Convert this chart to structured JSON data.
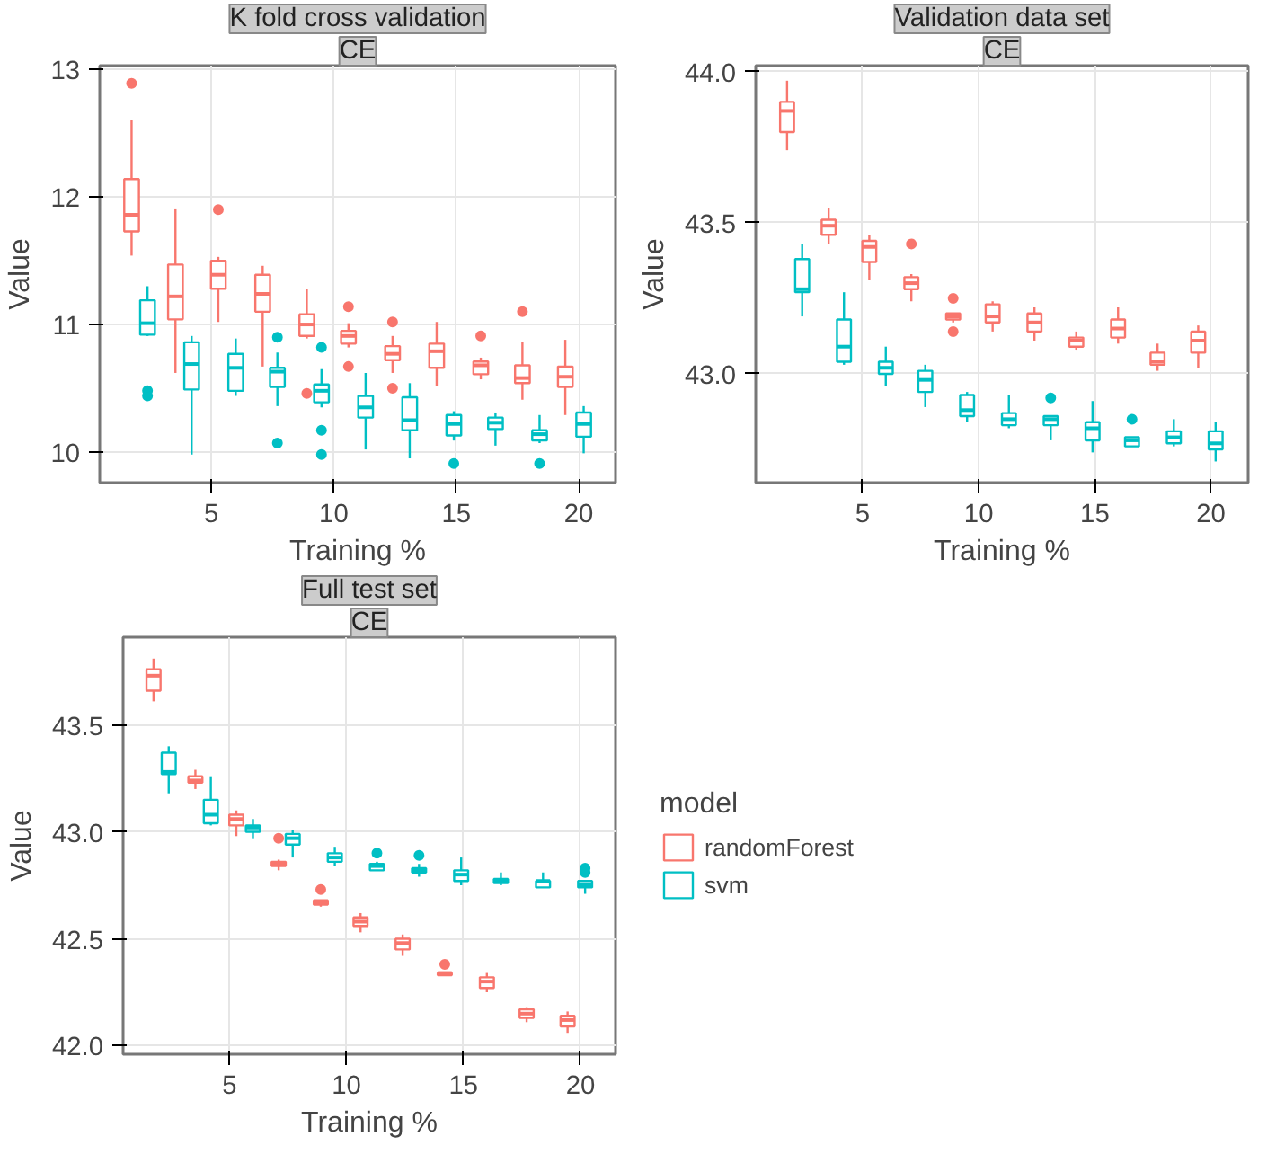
{
  "chart_data": [
    {
      "type": "box",
      "title": "K fold cross validation",
      "subtitle": "CE",
      "xlabel": "Training %",
      "ylabel": "Value",
      "xlim": [
        0.45,
        21.5
      ],
      "xticks": [
        5,
        10,
        15,
        20
      ],
      "ylim": [
        9.76,
        13.03
      ],
      "yticks": [
        10,
        11,
        12,
        13
      ],
      "grid": true,
      "series": [
        {
          "color": "#f8766d",
          "x": [
            1.75,
            3.54,
            5.29,
            7.1,
            8.9,
            10.6,
            12.4,
            14.2,
            16.0,
            17.7,
            19.45
          ],
          "boxes": [
            {
              "low": 11.54,
              "q1": 11.73,
              "median": 11.86,
              "q3": 12.14,
              "high": 12.6,
              "outliers": [
                12.89
              ]
            },
            {
              "low": 10.62,
              "q1": 11.04,
              "median": 11.22,
              "q3": 11.47,
              "high": 11.91
            },
            {
              "low": 11.02,
              "q1": 11.28,
              "median": 11.39,
              "q3": 11.5,
              "high": 11.53,
              "outliers": [
                11.9
              ]
            },
            {
              "low": 10.67,
              "q1": 11.1,
              "median": 11.24,
              "q3": 11.39,
              "high": 11.46
            },
            {
              "low": 10.89,
              "q1": 10.91,
              "median": 11.0,
              "q3": 11.08,
              "high": 11.28,
              "outliers": [
                10.46
              ]
            },
            {
              "low": 10.82,
              "q1": 10.85,
              "median": 10.91,
              "q3": 10.95,
              "high": 11.01,
              "outliers": [
                11.14,
                10.67
              ]
            },
            {
              "low": 10.62,
              "q1": 10.72,
              "median": 10.77,
              "q3": 10.83,
              "high": 10.91,
              "outliers": [
                11.02,
                10.5
              ]
            },
            {
              "low": 10.52,
              "q1": 10.66,
              "median": 10.79,
              "q3": 10.85,
              "high": 11.02
            },
            {
              "low": 10.57,
              "q1": 10.61,
              "median": 10.68,
              "q3": 10.71,
              "high": 10.74,
              "outliers": [
                10.91
              ]
            },
            {
              "low": 10.41,
              "q1": 10.54,
              "median": 10.58,
              "q3": 10.68,
              "high": 10.86,
              "outliers": [
                11.1
              ]
            },
            {
              "low": 10.29,
              "q1": 10.51,
              "median": 10.59,
              "q3": 10.67,
              "high": 10.88
            }
          ]
        },
        {
          "color": "#00bfc4",
          "x": [
            2.4,
            4.2,
            6.0,
            7.7,
            9.5,
            11.3,
            13.1,
            14.9,
            16.6,
            18.4,
            20.2
          ],
          "boxes": [
            {
              "low": 10.91,
              "q1": 10.92,
              "median": 11.01,
              "q3": 11.19,
              "high": 11.3,
              "outliers": [
                10.48,
                10.44
              ]
            },
            {
              "low": 9.98,
              "q1": 10.49,
              "median": 10.69,
              "q3": 10.86,
              "high": 10.91
            },
            {
              "low": 10.44,
              "q1": 10.48,
              "median": 10.66,
              "q3": 10.77,
              "high": 10.89
            },
            {
              "low": 10.36,
              "q1": 10.51,
              "median": 10.63,
              "q3": 10.66,
              "high": 10.78,
              "outliers": [
                10.9,
                10.07
              ]
            },
            {
              "low": 10.35,
              "q1": 10.39,
              "median": 10.48,
              "q3": 10.53,
              "high": 10.65,
              "outliers": [
                10.82,
                10.17,
                9.98
              ]
            },
            {
              "low": 10.02,
              "q1": 10.27,
              "median": 10.35,
              "q3": 10.44,
              "high": 10.62
            },
            {
              "low": 9.95,
              "q1": 10.17,
              "median": 10.25,
              "q3": 10.43,
              "high": 10.54
            },
            {
              "low": 10.09,
              "q1": 10.13,
              "median": 10.22,
              "q3": 10.29,
              "high": 10.32,
              "outliers": [
                9.91
              ]
            },
            {
              "low": 10.05,
              "q1": 10.18,
              "median": 10.23,
              "q3": 10.27,
              "high": 10.31
            },
            {
              "low": 10.07,
              "q1": 10.09,
              "median": 10.14,
              "q3": 10.17,
              "high": 10.29,
              "outliers": [
                9.91
              ]
            },
            {
              "low": 9.99,
              "q1": 10.12,
              "median": 10.22,
              "q3": 10.31,
              "high": 10.36
            }
          ]
        }
      ]
    },
    {
      "type": "box",
      "title": "Validation data set",
      "subtitle": "CE",
      "xlabel": "Training %",
      "ylabel": "Value",
      "xlim": [
        0.4,
        21.6
      ],
      "xticks": [
        5,
        10,
        15,
        20
      ],
      "ylim": [
        42.64,
        44.02
      ],
      "yticks": [
        {
          "value": 43,
          "label": "43.0"
        },
        43.5,
        {
          "value": 44,
          "label": "44.0"
        }
      ],
      "grid": true,
      "series": [
        {
          "color": "#f8766d",
          "x": [
            1.75,
            3.54,
            5.29,
            7.1,
            8.9,
            10.6,
            12.4,
            14.2,
            16.0,
            17.7,
            19.45
          ],
          "boxes": [
            {
              "low": 43.74,
              "q1": 43.8,
              "median": 43.87,
              "q3": 43.9,
              "high": 43.97
            },
            {
              "low": 43.43,
              "q1": 43.46,
              "median": 43.49,
              "q3": 43.51,
              "high": 43.55
            },
            {
              "low": 43.31,
              "q1": 43.37,
              "median": 43.42,
              "q3": 43.44,
              "high": 43.46
            },
            {
              "low": 43.24,
              "q1": 43.28,
              "median": 43.3,
              "q3": 43.32,
              "high": 43.33,
              "outliers": [
                43.43
              ]
            },
            {
              "low": 43.17,
              "q1": 43.18,
              "median": 43.19,
              "q3": 43.2,
              "high": 43.2,
              "outliers": [
                43.25,
                43.14
              ]
            },
            {
              "low": 43.14,
              "q1": 43.17,
              "median": 43.19,
              "q3": 43.23,
              "high": 43.24
            },
            {
              "low": 43.11,
              "q1": 43.14,
              "median": 43.17,
              "q3": 43.2,
              "high": 43.22
            },
            {
              "low": 43.08,
              "q1": 43.09,
              "median": 43.11,
              "q3": 43.12,
              "high": 43.14
            },
            {
              "low": 43.1,
              "q1": 43.12,
              "median": 43.15,
              "q3": 43.18,
              "high": 43.22
            },
            {
              "low": 43.01,
              "q1": 43.03,
              "median": 43.04,
              "q3": 43.07,
              "high": 43.1
            },
            {
              "low": 43.02,
              "q1": 43.07,
              "median": 43.11,
              "q3": 43.14,
              "high": 43.16
            }
          ]
        },
        {
          "color": "#00bfc4",
          "x": [
            2.4,
            4.2,
            6.0,
            7.7,
            9.5,
            11.3,
            13.1,
            14.9,
            16.6,
            18.4,
            20.2
          ],
          "boxes": [
            {
              "low": 43.19,
              "q1": 43.27,
              "median": 43.28,
              "q3": 43.38,
              "high": 43.43
            },
            {
              "low": 43.03,
              "q1": 43.04,
              "median": 43.09,
              "q3": 43.18,
              "high": 43.27
            },
            {
              "low": 42.96,
              "q1": 43.0,
              "median": 43.02,
              "q3": 43.04,
              "high": 43.09
            },
            {
              "low": 42.89,
              "q1": 42.94,
              "median": 42.98,
              "q3": 43.01,
              "high": 43.03
            },
            {
              "low": 42.84,
              "q1": 42.86,
              "median": 42.88,
              "q3": 42.93,
              "high": 42.94
            },
            {
              "low": 42.82,
              "q1": 42.83,
              "median": 42.85,
              "q3": 42.87,
              "high": 42.93
            },
            {
              "low": 42.78,
              "q1": 42.83,
              "median": 42.85,
              "q3": 42.86,
              "high": 42.86,
              "outliers": [
                42.92
              ]
            },
            {
              "low": 42.74,
              "q1": 42.78,
              "median": 42.82,
              "q3": 42.84,
              "high": 42.91
            },
            {
              "low": 42.76,
              "q1": 42.76,
              "median": 42.78,
              "q3": 42.79,
              "high": 42.79,
              "outliers": [
                42.85
              ]
            },
            {
              "low": 42.76,
              "q1": 42.77,
              "median": 42.79,
              "q3": 42.81,
              "high": 42.85
            },
            {
              "low": 42.71,
              "q1": 42.75,
              "median": 42.77,
              "q3": 42.81,
              "high": 42.84
            }
          ]
        }
      ]
    },
    {
      "type": "box",
      "title": "Full test set",
      "subtitle": "CE",
      "xlabel": "Training %",
      "ylabel": "Value",
      "xlim": [
        0.45,
        21.5
      ],
      "xticks": [
        5,
        10,
        15,
        20
      ],
      "ylim": [
        41.96,
        43.91
      ],
      "yticks": [
        {
          "value": 42,
          "label": "42.0"
        },
        42.5,
        {
          "value": 43,
          "label": "43.0"
        },
        43.5
      ],
      "grid": true,
      "legend": "right",
      "legend_title": "model",
      "series": [
        {
          "name": "randomForest",
          "color": "#f8766d",
          "x": [
            1.75,
            3.54,
            5.29,
            7.1,
            8.9,
            10.6,
            12.4,
            14.2,
            16.0,
            17.7,
            19.45
          ],
          "boxes": [
            {
              "low": 43.61,
              "q1": 43.66,
              "median": 43.73,
              "q3": 43.76,
              "high": 43.81
            },
            {
              "low": 43.2,
              "q1": 43.23,
              "median": 43.24,
              "q3": 43.26,
              "high": 43.29
            },
            {
              "low": 42.98,
              "q1": 43.03,
              "median": 43.06,
              "q3": 43.08,
              "high": 43.1
            },
            {
              "low": 42.82,
              "q1": 42.84,
              "median": 42.85,
              "q3": 42.86,
              "high": 42.87,
              "outliers": [
                42.97
              ]
            },
            {
              "low": 42.65,
              "q1": 42.66,
              "median": 42.67,
              "q3": 42.68,
              "high": 42.68,
              "outliers": [
                42.73
              ]
            },
            {
              "low": 42.53,
              "q1": 42.56,
              "median": 42.58,
              "q3": 42.6,
              "high": 42.62
            },
            {
              "low": 42.42,
              "q1": 42.45,
              "median": 42.48,
              "q3": 42.5,
              "high": 42.52
            },
            {
              "low": 42.33,
              "q1": 42.33,
              "median": 42.34,
              "q3": 42.34,
              "high": 42.34,
              "outliers": [
                42.38
              ]
            },
            {
              "low": 42.25,
              "q1": 42.27,
              "median": 42.3,
              "q3": 42.32,
              "high": 42.34
            },
            {
              "low": 42.11,
              "q1": 42.13,
              "median": 42.15,
              "q3": 42.17,
              "high": 42.18
            },
            {
              "low": 42.06,
              "q1": 42.09,
              "median": 42.12,
              "q3": 42.14,
              "high": 42.16
            }
          ]
        },
        {
          "name": "svm",
          "color": "#00bfc4",
          "x": [
            2.4,
            4.2,
            6.0,
            7.7,
            9.5,
            11.3,
            13.1,
            14.9,
            16.6,
            18.4,
            20.2
          ],
          "boxes": [
            {
              "low": 43.18,
              "q1": 43.27,
              "median": 43.28,
              "q3": 43.37,
              "high": 43.4
            },
            {
              "low": 43.03,
              "q1": 43.04,
              "median": 43.08,
              "q3": 43.15,
              "high": 43.26
            },
            {
              "low": 42.97,
              "q1": 43.0,
              "median": 43.02,
              "q3": 43.03,
              "high": 43.06
            },
            {
              "low": 42.88,
              "q1": 42.94,
              "median": 42.97,
              "q3": 42.99,
              "high": 43.01
            },
            {
              "low": 42.84,
              "q1": 42.86,
              "median": 42.88,
              "q3": 42.9,
              "high": 42.93
            },
            {
              "low": 42.82,
              "q1": 42.82,
              "median": 42.84,
              "q3": 42.85,
              "high": 42.86,
              "outliers": [
                42.9
              ]
            },
            {
              "low": 42.79,
              "q1": 42.81,
              "median": 42.82,
              "q3": 42.83,
              "high": 42.85,
              "outliers": [
                42.89
              ]
            },
            {
              "low": 42.75,
              "q1": 42.77,
              "median": 42.8,
              "q3": 42.82,
              "high": 42.88
            },
            {
              "low": 42.75,
              "q1": 42.76,
              "median": 42.77,
              "q3": 42.78,
              "high": 42.81
            },
            {
              "low": 42.74,
              "q1": 42.74,
              "median": 42.77,
              "q3": 42.77,
              "high": 42.81
            },
            {
              "low": 42.71,
              "q1": 42.74,
              "median": 42.75,
              "q3": 42.77,
              "high": 42.77,
              "outliers": [
                42.83,
                42.81
              ]
            }
          ]
        }
      ]
    }
  ]
}
